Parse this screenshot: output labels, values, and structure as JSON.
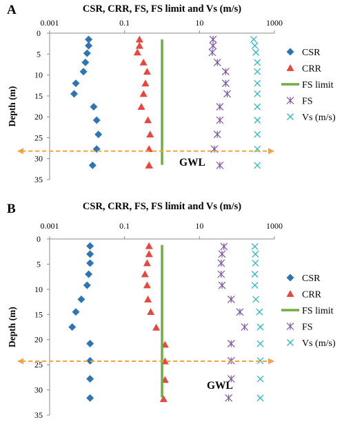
{
  "chart_data": [
    {
      "panel_label": "A",
      "type": "scatter",
      "title": "CSR, CRR, FS, FS limit and Vs (m/s)",
      "xlabel": "",
      "ylabel": "Depth (m)",
      "x_scale": "log",
      "xlim": [
        0.001,
        1000
      ],
      "ylim": [
        0,
        35
      ],
      "y_inverted": true,
      "x_ticks": [
        0.001,
        0.1,
        10,
        1000
      ],
      "x_tick_labels": [
        "0.001",
        "0.1",
        "10",
        "1000"
      ],
      "y_ticks": [
        0,
        5,
        10,
        15,
        20,
        25,
        30,
        35
      ],
      "grid": false,
      "legend_position": "right",
      "series": [
        {
          "name": "CSR",
          "marker": "diamond",
          "color": "#2e75b6",
          "x": [
            0.011,
            0.011,
            0.01,
            0.009,
            0.008,
            0.005,
            0.0045,
            0.015,
            0.018,
            0.02,
            0.018,
            0.014
          ],
          "y": [
            1.5,
            3,
            4.8,
            7,
            9.2,
            12,
            14.5,
            17.6,
            20.8,
            24.2,
            27.7,
            31.6
          ]
        },
        {
          "name": "CRR",
          "marker": "triangle",
          "color": "#e8473f",
          "x": [
            0.25,
            0.25,
            0.22,
            0.32,
            0.4,
            0.36,
            0.32,
            0.28,
            0.42,
            0.48,
            0.45,
            0.45,
            0.45,
            0.45
          ],
          "y": [
            1.5,
            3,
            4.6,
            7,
            9.2,
            12,
            14.5,
            17.6,
            20.8,
            24.2,
            27.7,
            31.6,
            31.6,
            31.6
          ]
        },
        {
          "name": "FS",
          "marker": "asterisk",
          "color": "#7b52a3",
          "x": [
            23,
            23,
            22,
            30,
            50,
            50,
            55,
            35,
            35,
            30,
            25,
            35
          ],
          "y": [
            1.5,
            3,
            4.6,
            7,
            9.2,
            12,
            14.5,
            17.6,
            20.8,
            24.2,
            27.7,
            31.6
          ]
        },
        {
          "name": "Vs (m/s)",
          "marker": "cross",
          "color": "#2cb7c4",
          "x": [
            280,
            300,
            320,
            350,
            350,
            350,
            350,
            350,
            350,
            350,
            350,
            350
          ],
          "y": [
            1.5,
            3,
            4.6,
            7,
            9.2,
            12,
            14.5,
            17.6,
            20.8,
            24.2,
            27.7,
            31.6
          ]
        },
        {
          "name": "FS limit",
          "marker": "line",
          "color": "#70ad47",
          "x": [
            1,
            1
          ],
          "y": [
            1.5,
            31.5
          ]
        }
      ],
      "gwl_depth": 28.2,
      "annotation": "GWL",
      "colors": {
        "gwl": "#f4a341"
      }
    },
    {
      "panel_label": "B",
      "type": "scatter",
      "title": "CSR, CRR, FS, FS limit and Vs (m/s)",
      "xlabel": "",
      "ylabel": "Depth (m)",
      "x_scale": "log",
      "xlim": [
        0.001,
        1000
      ],
      "ylim": [
        0,
        35
      ],
      "y_inverted": true,
      "x_ticks": [
        0.001,
        0.1,
        10,
        1000
      ],
      "x_tick_labels": [
        "0.001",
        "0.1",
        "10",
        "1000"
      ],
      "y_ticks": [
        0,
        5,
        10,
        15,
        20,
        25,
        30,
        35
      ],
      "grid": false,
      "legend_position": "right",
      "series": [
        {
          "name": "CSR",
          "marker": "diamond",
          "color": "#2e75b6",
          "x": [
            0.012,
            0.012,
            0.012,
            0.011,
            0.01,
            0.007,
            0.005,
            0.004,
            0.012,
            0.012,
            0.012,
            0.012
          ],
          "y": [
            1.4,
            3,
            4.8,
            7,
            9.2,
            12,
            14.5,
            17.5,
            20.8,
            24.2,
            27.8,
            31.6
          ]
        },
        {
          "name": "CRR",
          "marker": "triangle",
          "color": "#e8473f",
          "x": [
            0.45,
            0.45,
            0.4,
            0.35,
            0.4,
            0.42,
            0.5,
            0.7,
            1.2,
            1.2,
            1.2,
            1.1
          ],
          "y": [
            1.4,
            3,
            4.8,
            7,
            9.2,
            12,
            14.5,
            17.6,
            21,
            24.3,
            28,
            31.8
          ]
        },
        {
          "name": "FS",
          "marker": "asterisk",
          "color": "#7b52a3",
          "x": [
            45,
            40,
            38,
            38,
            40,
            70,
            120,
            160,
            70,
            70,
            70,
            60
          ],
          "y": [
            1.5,
            3,
            4.8,
            7,
            9.2,
            12,
            14.5,
            17.5,
            20.8,
            24.2,
            27.8,
            31.6
          ]
        },
        {
          "name": "Vs (m/s)",
          "marker": "cross",
          "color": "#2cb7c4",
          "x": [
            300,
            310,
            310,
            300,
            300,
            320,
            400,
            420,
            420,
            420,
            420,
            420
          ],
          "y": [
            1.5,
            3,
            4.8,
            7,
            9.2,
            12,
            14.5,
            17.5,
            20.8,
            24.2,
            27.8,
            31.6
          ]
        },
        {
          "name": "FS limit",
          "marker": "line",
          "color": "#70ad47",
          "x": [
            1,
            1
          ],
          "y": [
            1.2,
            31.5
          ]
        }
      ],
      "gwl_depth": 24.3,
      "annotation": "GWL",
      "colors": {
        "gwl": "#f4a341"
      }
    }
  ]
}
